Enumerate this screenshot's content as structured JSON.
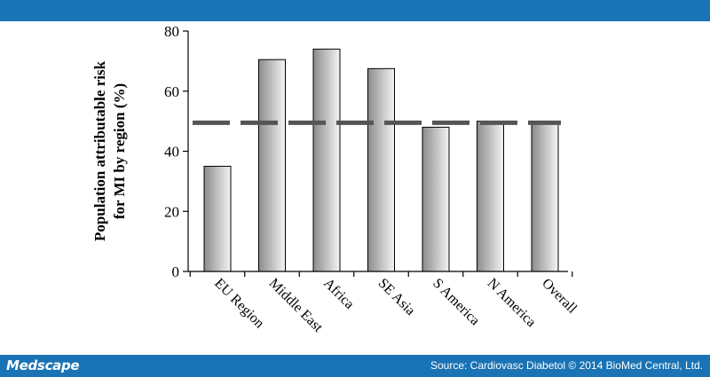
{
  "header": {
    "color": "#1a73b4"
  },
  "footer": {
    "logo": "Medscape",
    "source": "Source: Cardiovasc Diabetol © 2014 BioMed Central, Ltd."
  },
  "chart_data": {
    "type": "bar",
    "title": "",
    "xlabel": "",
    "ylabel_lines": [
      "Population attributable risk",
      "for MI by region (%)"
    ],
    "categories": [
      "EU Region",
      "Middle East",
      "Africa",
      "SE Asia",
      "S America",
      "N America",
      "Overall"
    ],
    "values": [
      35,
      70.5,
      74,
      67.5,
      48,
      50,
      49.5
    ],
    "ylim": [
      0,
      80
    ],
    "yticks": [
      0,
      20,
      40,
      60,
      80
    ],
    "reference_line": {
      "value": 49.5,
      "style": "dashed"
    },
    "grid": false,
    "legend": "none",
    "colors": {
      "bar_fill_dark": "#8c8c8c",
      "bar_fill_light": "#f4f4f4",
      "bar_stroke": "#000000",
      "reference_line": "#555555"
    }
  }
}
